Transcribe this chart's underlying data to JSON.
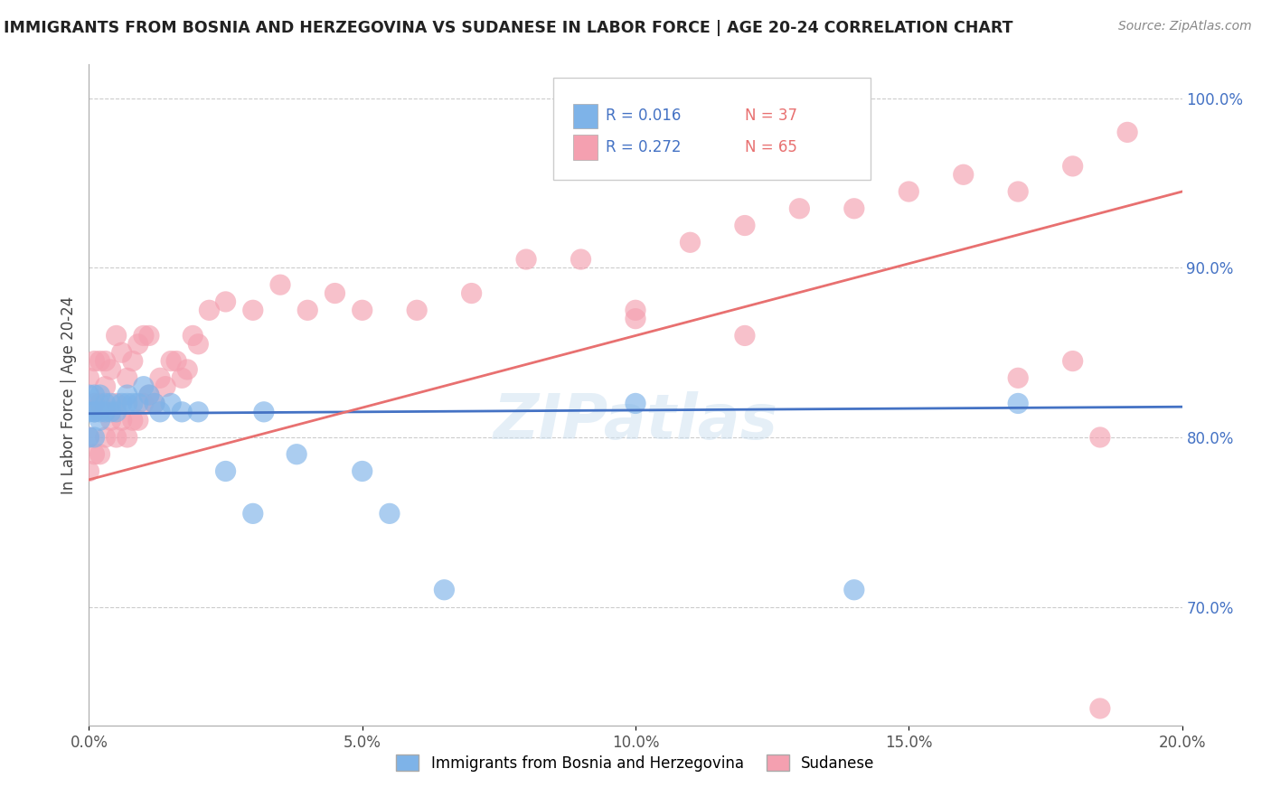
{
  "title": "IMMIGRANTS FROM BOSNIA AND HERZEGOVINA VS SUDANESE IN LABOR FORCE | AGE 20-24 CORRELATION CHART",
  "source": "Source: ZipAtlas.com",
  "ylabel": "In Labor Force | Age 20-24",
  "xlim": [
    0.0,
    0.2
  ],
  "ylim": [
    0.63,
    1.02
  ],
  "right_yticks": [
    0.7,
    0.8,
    0.9,
    1.0
  ],
  "right_yticklabels": [
    "70.0%",
    "80.0%",
    "90.0%",
    "100.0%"
  ],
  "xticks": [
    0.0,
    0.05,
    0.1,
    0.15,
    0.2
  ],
  "xticklabels": [
    "0.0%",
    "5.0%",
    "10.0%",
    "15.0%",
    "20.0%"
  ],
  "legend_label1": "Immigrants from Bosnia and Herzegovina",
  "legend_label2": "Sudanese",
  "r1": 0.016,
  "n1": 37,
  "r2": 0.272,
  "n2": 65,
  "color1": "#7eb3e8",
  "color2": "#f4a0b0",
  "line_color1": "#4472c4",
  "line_color2": "#e87070",
  "watermark": "ZIPatlas",
  "bosnia_x": [
    0.0,
    0.0,
    0.0,
    0.001,
    0.001,
    0.001,
    0.001,
    0.002,
    0.002,
    0.002,
    0.003,
    0.003,
    0.004,
    0.004,
    0.005,
    0.006,
    0.007,
    0.007,
    0.008,
    0.009,
    0.01,
    0.011,
    0.012,
    0.013,
    0.015,
    0.017,
    0.02,
    0.025,
    0.03,
    0.032,
    0.038,
    0.05,
    0.055,
    0.065,
    0.1,
    0.14,
    0.17
  ],
  "bosnia_y": [
    0.815,
    0.825,
    0.8,
    0.815,
    0.825,
    0.8,
    0.815,
    0.815,
    0.825,
    0.81,
    0.815,
    0.82,
    0.815,
    0.82,
    0.815,
    0.82,
    0.82,
    0.825,
    0.82,
    0.82,
    0.83,
    0.825,
    0.82,
    0.815,
    0.82,
    0.815,
    0.815,
    0.78,
    0.755,
    0.815,
    0.79,
    0.78,
    0.755,
    0.71,
    0.82,
    0.71,
    0.82
  ],
  "sudanese_x": [
    0.0,
    0.0,
    0.0,
    0.001,
    0.001,
    0.001,
    0.002,
    0.002,
    0.002,
    0.003,
    0.003,
    0.003,
    0.004,
    0.004,
    0.005,
    0.005,
    0.005,
    0.006,
    0.006,
    0.007,
    0.007,
    0.008,
    0.008,
    0.009,
    0.009,
    0.01,
    0.01,
    0.011,
    0.011,
    0.012,
    0.013,
    0.014,
    0.015,
    0.016,
    0.017,
    0.018,
    0.019,
    0.02,
    0.022,
    0.025,
    0.03,
    0.035,
    0.04,
    0.045,
    0.05,
    0.06,
    0.07,
    0.08,
    0.09,
    0.1,
    0.11,
    0.12,
    0.13,
    0.14,
    0.15,
    0.16,
    0.17,
    0.18,
    0.185,
    0.1,
    0.12,
    0.17,
    0.18,
    0.19,
    0.185
  ],
  "sudanese_y": [
    0.78,
    0.8,
    0.835,
    0.79,
    0.82,
    0.845,
    0.79,
    0.82,
    0.845,
    0.8,
    0.83,
    0.845,
    0.81,
    0.84,
    0.8,
    0.82,
    0.86,
    0.81,
    0.85,
    0.8,
    0.835,
    0.81,
    0.845,
    0.81,
    0.855,
    0.82,
    0.86,
    0.825,
    0.86,
    0.82,
    0.835,
    0.83,
    0.845,
    0.845,
    0.835,
    0.84,
    0.86,
    0.855,
    0.875,
    0.88,
    0.875,
    0.89,
    0.875,
    0.885,
    0.875,
    0.875,
    0.885,
    0.905,
    0.905,
    0.875,
    0.915,
    0.925,
    0.935,
    0.935,
    0.945,
    0.955,
    0.835,
    0.845,
    0.8,
    0.87,
    0.86,
    0.945,
    0.96,
    0.98,
    0.64
  ],
  "bosnia_line_x": [
    0.0,
    0.2
  ],
  "bosnia_line_y": [
    0.814,
    0.818
  ],
  "sudanese_line_x": [
    0.0,
    0.2
  ],
  "sudanese_line_y": [
    0.775,
    0.945
  ]
}
